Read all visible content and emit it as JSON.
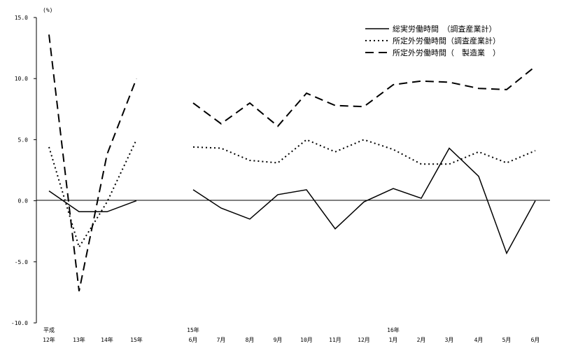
{
  "chart_data": {
    "type": "line",
    "unit_label": "(%)",
    "ylim": [
      -10.0,
      15.0
    ],
    "y_ticks": [
      "15.0",
      "10.0",
      "5.0",
      "0.0",
      "-5.0",
      "-10.0"
    ],
    "y_tick_values": [
      15,
      10,
      5,
      0,
      -5,
      -10
    ],
    "grid": false,
    "legend_position": "top-right",
    "categories": [
      {
        "top": "平成",
        "bottom": "12年"
      },
      {
        "top": "",
        "bottom": "13年"
      },
      {
        "top": "",
        "bottom": "14年"
      },
      {
        "top": "",
        "bottom": "15年"
      },
      {
        "top": "15年",
        "bottom": "6月"
      },
      {
        "top": "",
        "bottom": "7月"
      },
      {
        "top": "",
        "bottom": "8月"
      },
      {
        "top": "",
        "bottom": "9月"
      },
      {
        "top": "",
        "bottom": "10月"
      },
      {
        "top": "",
        "bottom": "11月"
      },
      {
        "top": "",
        "bottom": "12月"
      },
      {
        "top": "16年",
        "bottom": "1月"
      },
      {
        "top": "",
        "bottom": "2月"
      },
      {
        "top": "",
        "bottom": "3月"
      },
      {
        "top": "",
        "bottom": "4月"
      },
      {
        "top": "",
        "bottom": "5月"
      },
      {
        "top": "",
        "bottom": "6月"
      }
    ],
    "series": [
      {
        "name": "総実労働時間　（調査産業計）",
        "style": "solid",
        "segments": [
          {
            "start": 0,
            "values": [
              0.8,
              -0.9,
              -0.9,
              0.0
            ]
          },
          {
            "start": 4,
            "values": [
              0.9,
              -0.6,
              -1.5,
              0.5,
              0.9,
              -2.3,
              -0.1,
              1.0,
              0.2,
              4.3,
              2.0,
              -4.3,
              0.0
            ]
          }
        ]
      },
      {
        "name": "所定外労働時間（調査産業計）",
        "style": "dotted",
        "segments": [
          {
            "start": 0,
            "values": [
              4.4,
              -3.8,
              -0.1,
              5.0
            ]
          },
          {
            "start": 4,
            "values": [
              4.4,
              4.3,
              3.3,
              3.1,
              5.0,
              4.0,
              5.0,
              4.2,
              3.0,
              3.0,
              4.0,
              3.1,
              4.1
            ]
          }
        ]
      },
      {
        "name": "所定外労働時間（　製造業　）",
        "style": "dashed",
        "segments": [
          {
            "start": 0,
            "values": [
              13.6,
              -7.4,
              3.8,
              10.0
            ]
          },
          {
            "start": 4,
            "values": [
              8.0,
              6.3,
              8.0,
              6.1,
              8.8,
              7.8,
              7.7,
              9.5,
              9.8,
              9.7,
              9.2,
              9.1,
              11.0
            ]
          }
        ]
      }
    ]
  }
}
